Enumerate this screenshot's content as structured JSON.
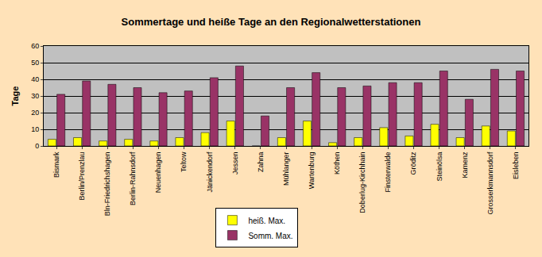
{
  "chart_data": {
    "type": "bar",
    "title": "Sommertage und heiße Tage an den Regionalwetterstationen",
    "y_label": "Tage",
    "categories": [
      "Bismark",
      "Berlin/Prenzlau",
      "Bln-Friedrichshagen",
      "Berlin-Rahnsdorf",
      "Neuenhagen",
      "Teltow",
      "Jänickendorf",
      "Jessen",
      "Zahna",
      "Mühlanger",
      "Wartenburg",
      "Köthen",
      "Doberlug-Kirchhain",
      "Finsterwalde",
      "Gröditz",
      "Steinölsa",
      "Kamenz",
      "Grosserkmannsdorf",
      "Eisleben"
    ],
    "series": [
      {
        "name": "heiß. Max.",
        "color": "#FFFF00",
        "values": [
          4,
          5,
          3,
          4,
          3,
          5,
          8,
          15,
          0,
          5,
          15,
          2,
          5,
          11,
          6,
          13,
          5,
          12,
          9
        ]
      },
      {
        "name": "Somm. Max.",
        "color": "#993366",
        "values": [
          31,
          39,
          37,
          35,
          32,
          33,
          41,
          48,
          18,
          35,
          44,
          35,
          36,
          38,
          38,
          45,
          28,
          46,
          45
        ]
      }
    ],
    "ylim": [
      0,
      60
    ],
    "yticks": [
      0,
      10,
      20,
      30,
      40,
      50,
      60
    ],
    "grid": true,
    "legend": "bottom"
  }
}
